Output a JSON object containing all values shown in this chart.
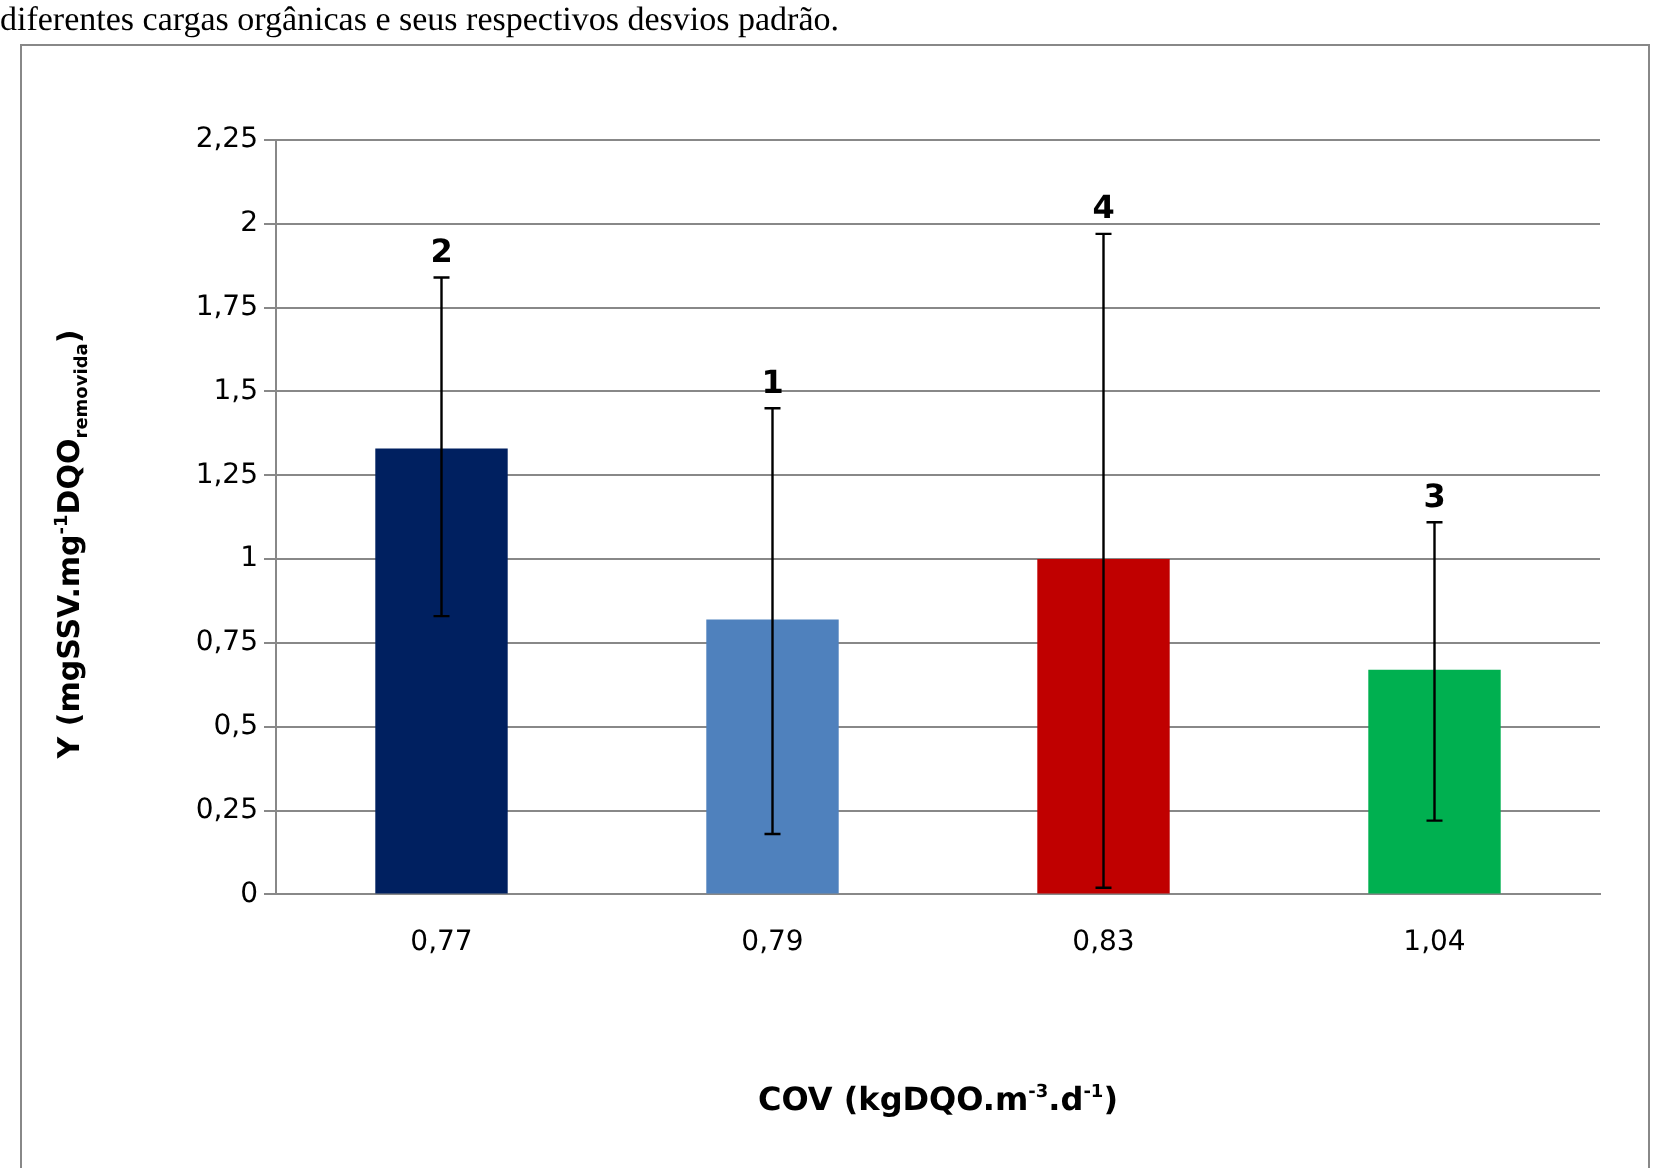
{
  "chart_data": {
    "type": "bar",
    "categories": [
      "0,77",
      "0,79",
      "0,83",
      "1,04"
    ],
    "values": [
      1.33,
      0.82,
      1.0,
      0.67
    ],
    "colors": [
      "#002060",
      "#4f81bd",
      "#c00000",
      "#00b050"
    ],
    "errors": [
      [
        0.83,
        1.84
      ],
      [
        0.18,
        1.45
      ],
      [
        0.02,
        1.97
      ],
      [
        0.22,
        1.11
      ]
    ],
    "ylim": [
      0,
      2.25
    ],
    "yticks": [
      0,
      {
        "value": 0.25,
        "label": "0,25"
      },
      {
        "value": 0.5,
        "label": "0,5"
      },
      {
        "value": 0.75,
        "label": "0,75"
      },
      1,
      {
        "value": 1.25,
        "label": "1,25"
      },
      {
        "value": 1.5,
        "label": "1,5"
      },
      {
        "value": 1.75,
        "label": "1,75"
      },
      2,
      {
        "value": 2.25,
        "label": "2,25"
      }
    ],
    "grid": "y",
    "legend": false,
    "xlabel": "COV (kgDQO.m$^{-3}$.d$^{-1}$)",
    "ylabel": "Y (mgSSV.mg$^{-1}$DQO$_{removida}$)",
    "annotations": [
      "diferentes cargas orgânicas e seus respectivos desvios padrão.",
      {
        "text": "2",
        "x": "0,77",
        "y": 1.84
      },
      {
        "text": "1",
        "x": "0,79",
        "y": 1.45
      },
      {
        "text": "4",
        "x": "0,83",
        "y": 1.97
      },
      {
        "text": "3",
        "x": "1,04",
        "y": 1.11
      }
    ]
  }
}
